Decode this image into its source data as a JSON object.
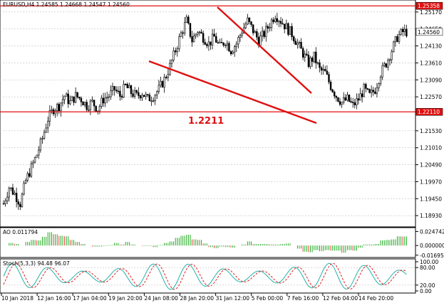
{
  "chart_data": [
    {
      "type": "candlestick",
      "title": "EURUSD,H4  1.24585 1.24668 1.24547 1.24560",
      "ylim": [
        1.1865,
        1.2545
      ],
      "yticks": [
        "1.25170",
        "1.24650",
        "1.24130",
        "1.23610",
        "1.23090",
        "1.22570",
        "1.22110",
        "1.21530",
        "1.21010",
        "1.20490",
        "1.19970",
        "1.19450",
        "1.18930"
      ],
      "xticks": [
        "10 Jan 2018",
        "12 Jan 16:00",
        "17 Jan 04:00",
        "19 Jan 20:00",
        "24 Jan 08:00",
        "28 Jan 20:00",
        "31 Jan 12:00",
        "5 Feb 00:00",
        "7 Feb 16:00",
        "12 Feb 04:00",
        "14 Feb 20:00"
      ],
      "current_price_label": "1.24560",
      "resistance_label": "1.25358",
      "support_label": "1.22110",
      "support_annotation": "1.2211",
      "close_path": [
        1.193,
        1.198,
        1.196,
        1.193,
        1.2,
        1.204,
        1.208,
        1.213,
        1.219,
        1.222,
        1.223,
        1.226,
        1.224,
        1.226,
        1.225,
        1.223,
        1.224,
        1.222,
        1.225,
        1.226,
        1.228,
        1.226,
        1.229,
        1.227,
        1.226,
        1.227,
        1.225,
        1.226,
        1.228,
        1.231,
        1.235,
        1.24,
        1.245,
        1.249,
        1.243,
        1.246,
        1.244,
        1.242,
        1.244,
        1.241,
        1.243,
        1.24,
        1.242,
        1.246,
        1.249,
        1.246,
        1.243,
        1.245,
        1.248,
        1.251,
        1.249,
        1.247,
        1.245,
        1.242,
        1.239,
        1.236,
        1.238,
        1.234,
        1.233,
        1.229,
        1.226,
        1.224,
        1.225,
        1.223,
        1.225,
        1.228,
        1.226,
        1.228,
        1.233,
        1.236,
        1.24,
        1.244,
        1.2456
      ],
      "series": [
        {
          "name": "Resistance",
          "value": 1.25358
        },
        {
          "name": "Support",
          "value": 1.2211
        }
      ]
    },
    {
      "type": "bar",
      "title": "AO 0.011794",
      "yticks": [
        "0.024742",
        "0.000000",
        "-0.016957"
      ],
      "ylim": [
        -0.0185,
        0.0265
      ]
    },
    {
      "type": "line",
      "title": "Stoch(5,3,3) 94.48 96.07",
      "yticks": [
        "100.00",
        "80.00",
        "20.00",
        "0.00"
      ],
      "ylim": [
        0,
        100
      ]
    }
  ],
  "colors": {
    "bull": "#ffffff",
    "bear": "#000000",
    "trend": "#e01010",
    "ao_up": "#22aa22",
    "ao_down": "#e04040",
    "stoch_main": "#20b2aa",
    "stoch_signal": "#e02020"
  }
}
